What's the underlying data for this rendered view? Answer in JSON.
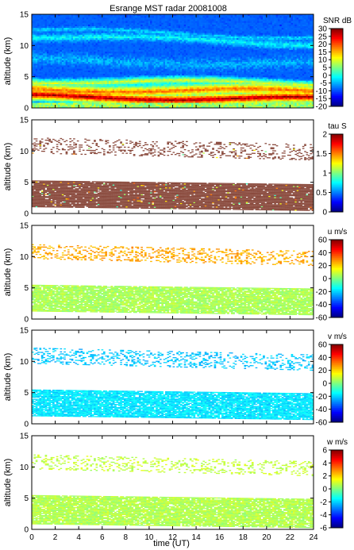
{
  "chart_data": {
    "type": "heatmap",
    "title": "Esrange MST radar 20081008",
    "xlabel": "time (UT)",
    "xlim": [
      0,
      24
    ],
    "xticks": [
      "0",
      "2",
      "4",
      "6",
      "8",
      "10",
      "12",
      "14",
      "16",
      "18",
      "20",
      "22",
      "24"
    ],
    "panels": [
      {
        "id": "snr",
        "ylabel": "altitude (km)",
        "ylim": [
          0,
          15
        ],
        "yticks": [
          "0",
          "5",
          "10",
          "15"
        ],
        "colorbar_label": "SNR dB",
        "colorbar_range": [
          -20,
          30
        ],
        "colorbar_ticks": [
          "30",
          "25",
          "20",
          "15",
          "10",
          "5",
          "0",
          "-5",
          "-10",
          "-15",
          "-20"
        ],
        "colormap": "jet",
        "background_level": 0.18,
        "layers": [
          {
            "altitude": 1.8,
            "thickness": 1.4,
            "level": 0.97
          },
          {
            "altitude": 3.0,
            "thickness": 1.6,
            "level": 0.78
          },
          {
            "altitude": 4.3,
            "thickness": 1.0,
            "level": 0.6
          },
          {
            "altitude": 7.5,
            "thickness": 1.6,
            "level": 0.3
          },
          {
            "altitude": 11.5,
            "thickness": 1.0,
            "level": 0.38
          },
          {
            "altitude": 12.5,
            "thickness": 0.6,
            "level": 0.34
          }
        ]
      },
      {
        "id": "tau",
        "ylabel": "altitude (km)",
        "ylim": [
          0,
          15
        ],
        "yticks": [
          "0",
          "5",
          "10",
          "15"
        ],
        "colorbar_label": "tau S",
        "colorbar_range": [
          0,
          2
        ],
        "colorbar_ticks": [
          "2",
          "1.5",
          "1",
          "0.5",
          "0"
        ],
        "colormap": "jet",
        "dominant_color": "#8a4a3d",
        "layers": [
          {
            "altitude_bottom": 1.0,
            "altitude_top": 5.3,
            "density": 0.95
          },
          {
            "altitude_bottom": 9.6,
            "altitude_top": 12.2,
            "density": 0.22
          }
        ]
      },
      {
        "id": "u",
        "ylabel": "altitude (km)",
        "ylim": [
          0,
          15
        ],
        "yticks": [
          "0",
          "5",
          "10",
          "15"
        ],
        "colorbar_label": "u m/s",
        "colorbar_range": [
          -60,
          60
        ],
        "colorbar_ticks": [
          "60",
          "40",
          "20",
          "0",
          "-20",
          "-40",
          "-60"
        ],
        "colormap": "jet",
        "layers": [
          {
            "altitude_bottom": 1.2,
            "altitude_top": 5.5,
            "value": 5,
            "density": 0.9
          },
          {
            "altitude_bottom": 9.6,
            "altitude_top": 12.0,
            "value": 25,
            "density": 0.3
          }
        ]
      },
      {
        "id": "v",
        "ylabel": "altitude (km)",
        "ylim": [
          0,
          15
        ],
        "yticks": [
          "0",
          "5",
          "10",
          "15"
        ],
        "colorbar_label": "v m/s",
        "colorbar_range": [
          -60,
          60
        ],
        "colorbar_ticks": [
          "60",
          "40",
          "20",
          "0",
          "-20",
          "-40",
          "-60"
        ],
        "colormap": "jet",
        "layers": [
          {
            "altitude_bottom": 1.2,
            "altitude_top": 5.5,
            "value": -18,
            "density": 0.9
          },
          {
            "altitude_bottom": 9.6,
            "altitude_top": 12.2,
            "value": -22,
            "density": 0.28
          }
        ]
      },
      {
        "id": "w",
        "ylabel": "altitude (km)",
        "ylim": [
          0,
          15
        ],
        "yticks": [
          "0",
          "5",
          "10",
          "15"
        ],
        "colorbar_label": "w m/s",
        "colorbar_range": [
          -6,
          6
        ],
        "colorbar_ticks": [
          "6",
          "4",
          "2",
          "0",
          "-2",
          "-4",
          "-6"
        ],
        "colormap": "jet",
        "layers": [
          {
            "altitude_bottom": 0.8,
            "altitude_top": 5.5,
            "value": 0.6,
            "density": 0.9
          },
          {
            "altitude_bottom": 9.6,
            "altitude_top": 12.0,
            "value": 0.8,
            "density": 0.25
          }
        ]
      }
    ]
  }
}
